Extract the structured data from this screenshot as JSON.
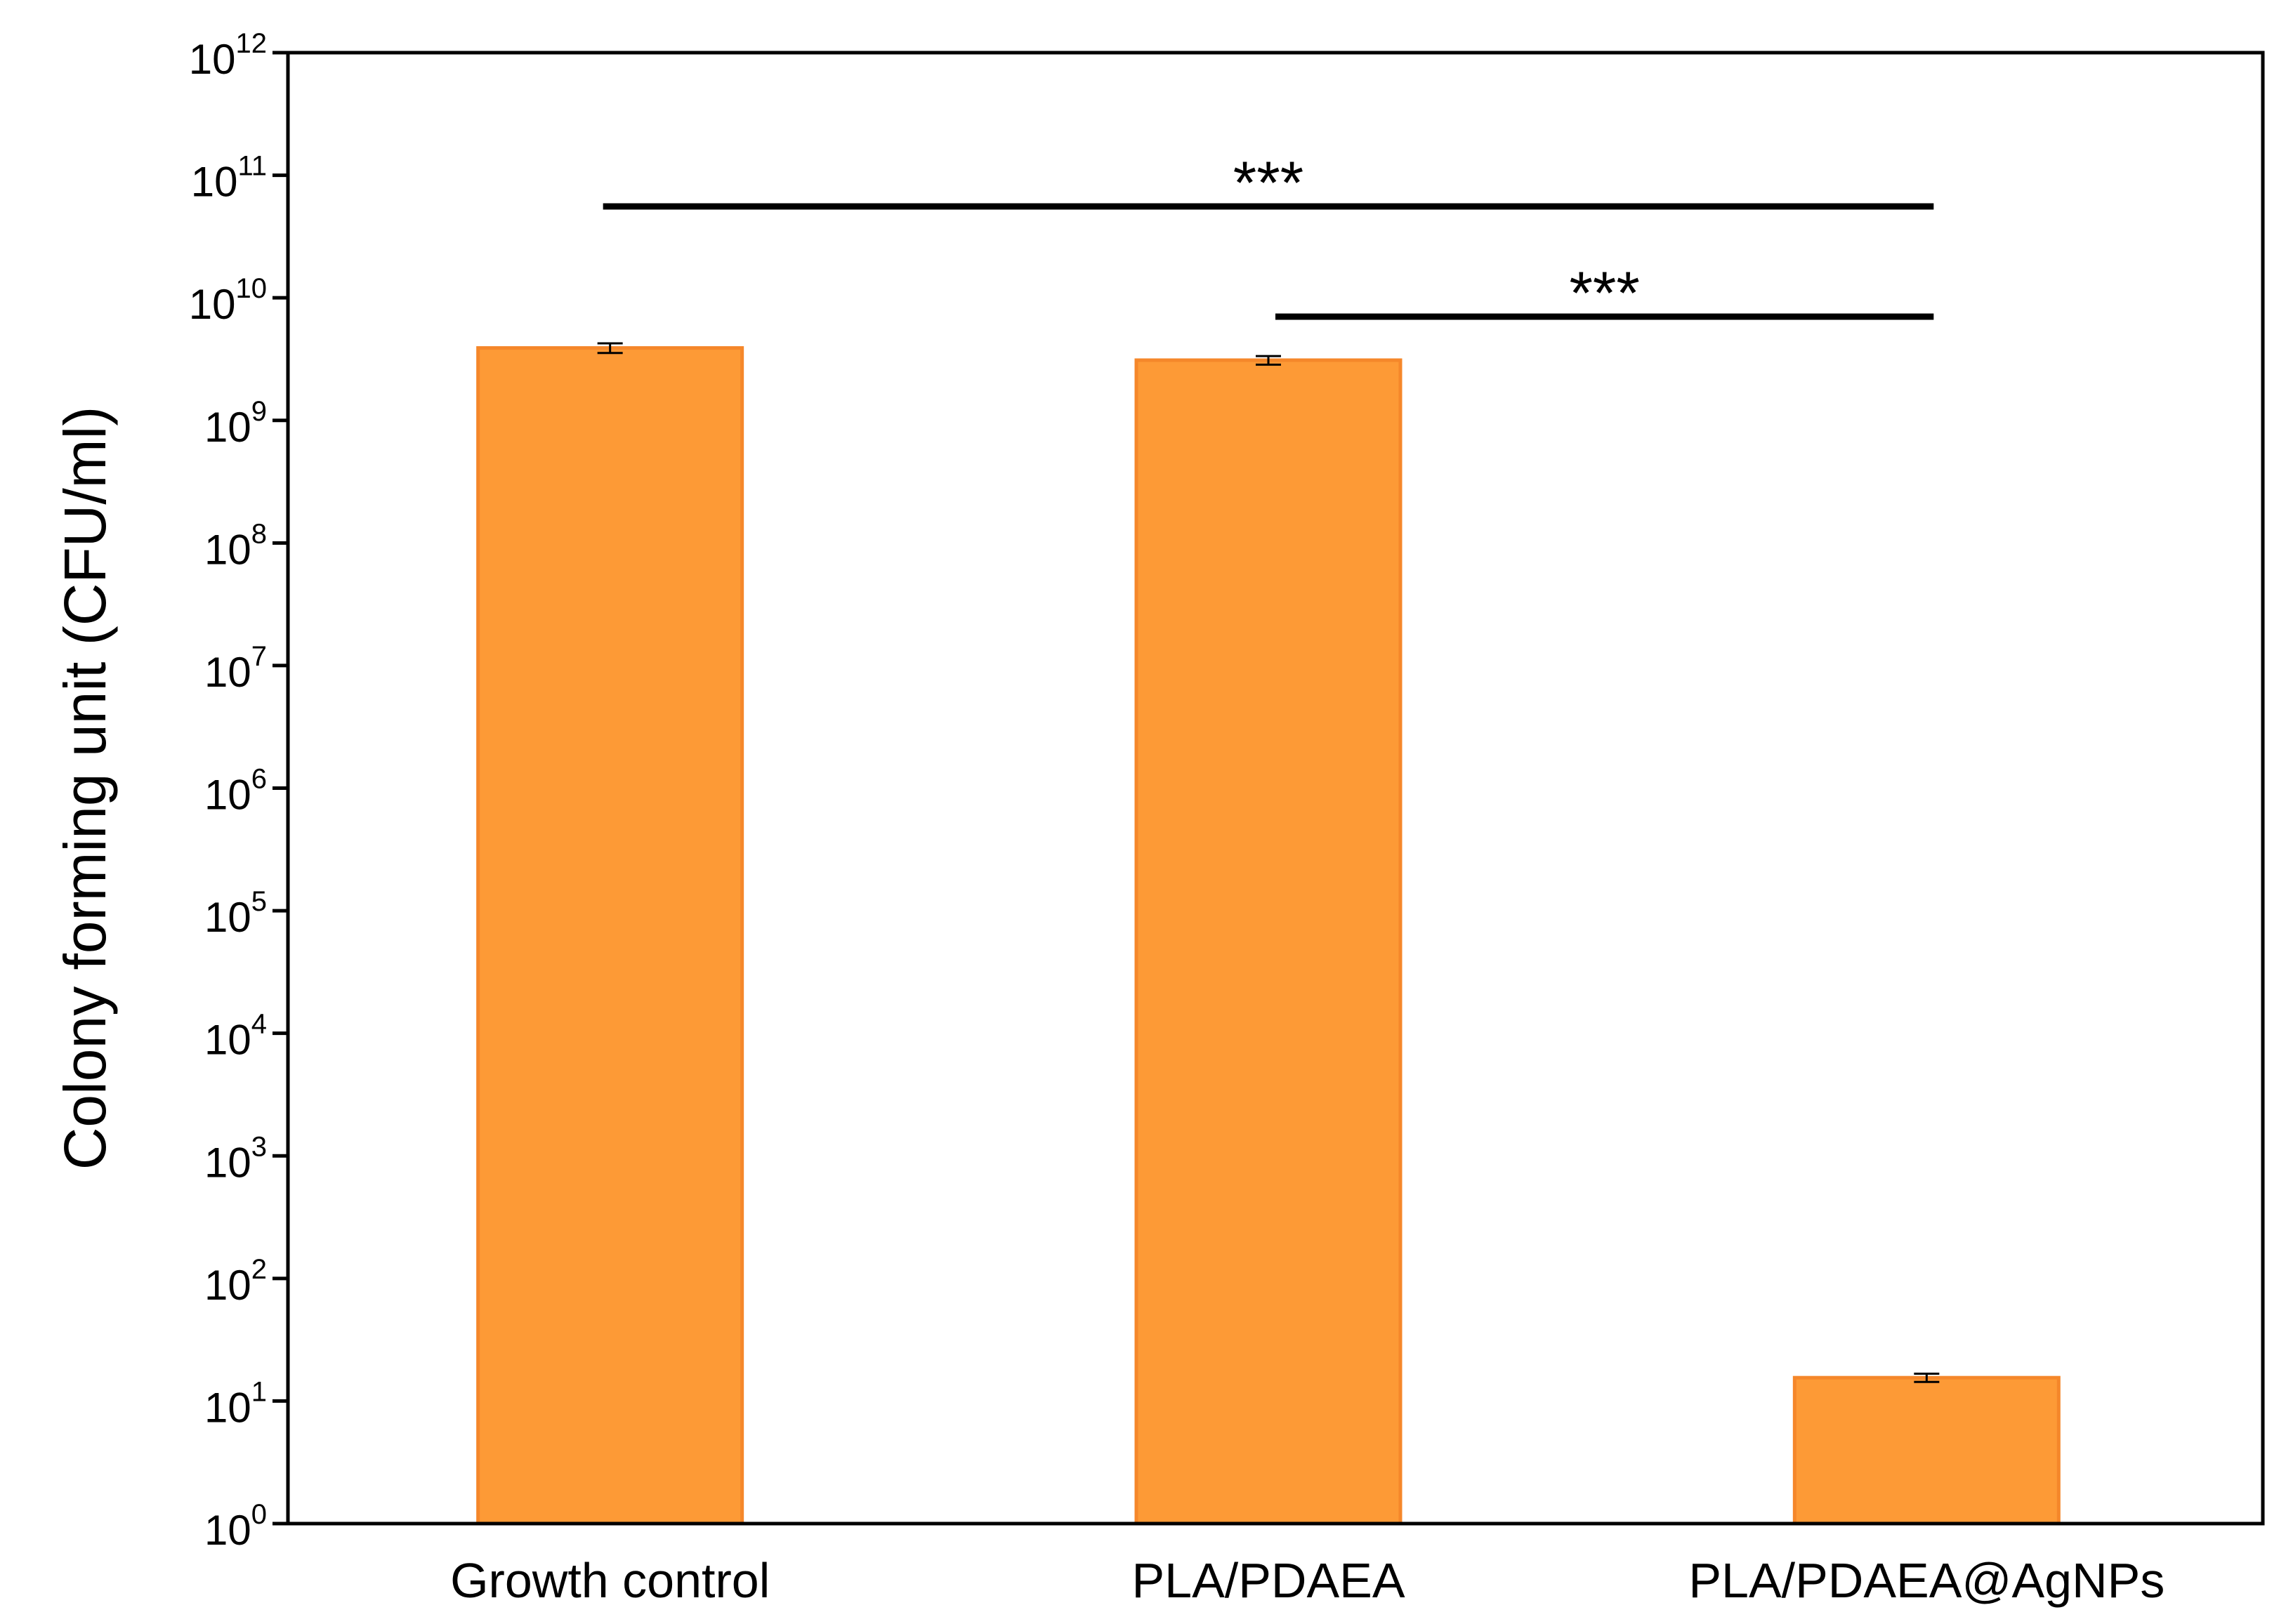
{
  "chart_data": {
    "type": "bar",
    "title": "",
    "xlabel": "",
    "ylabel": "Colony forming unit (CFU/ml)",
    "yscale": "log",
    "ylim": [
      1,
      1000000000000.0
    ],
    "ytick_base": "10",
    "ytick_exponents": [
      "0",
      "1",
      "2",
      "3",
      "4",
      "5",
      "6",
      "7",
      "8",
      "9",
      "10",
      "11",
      "12"
    ],
    "categories": [
      "Growth control",
      "PLA/PDAEA",
      "PLA/PDAEA@AgNPs"
    ],
    "values": [
      3900000000.0,
      3100000000.0,
      15.5
    ],
    "errors": [
      350000000.0,
      250000000.0,
      1.2
    ],
    "bar_color": "#fd9a36",
    "bar_edge_color": "#f5872a",
    "grid": false,
    "significance": [
      {
        "from": "Growth control",
        "to": "PLA/PDAEA@AgNPs",
        "label": "***"
      },
      {
        "from": "PLA/PDAEA",
        "to": "PLA/PDAEA@AgNPs",
        "label": "***"
      }
    ]
  }
}
